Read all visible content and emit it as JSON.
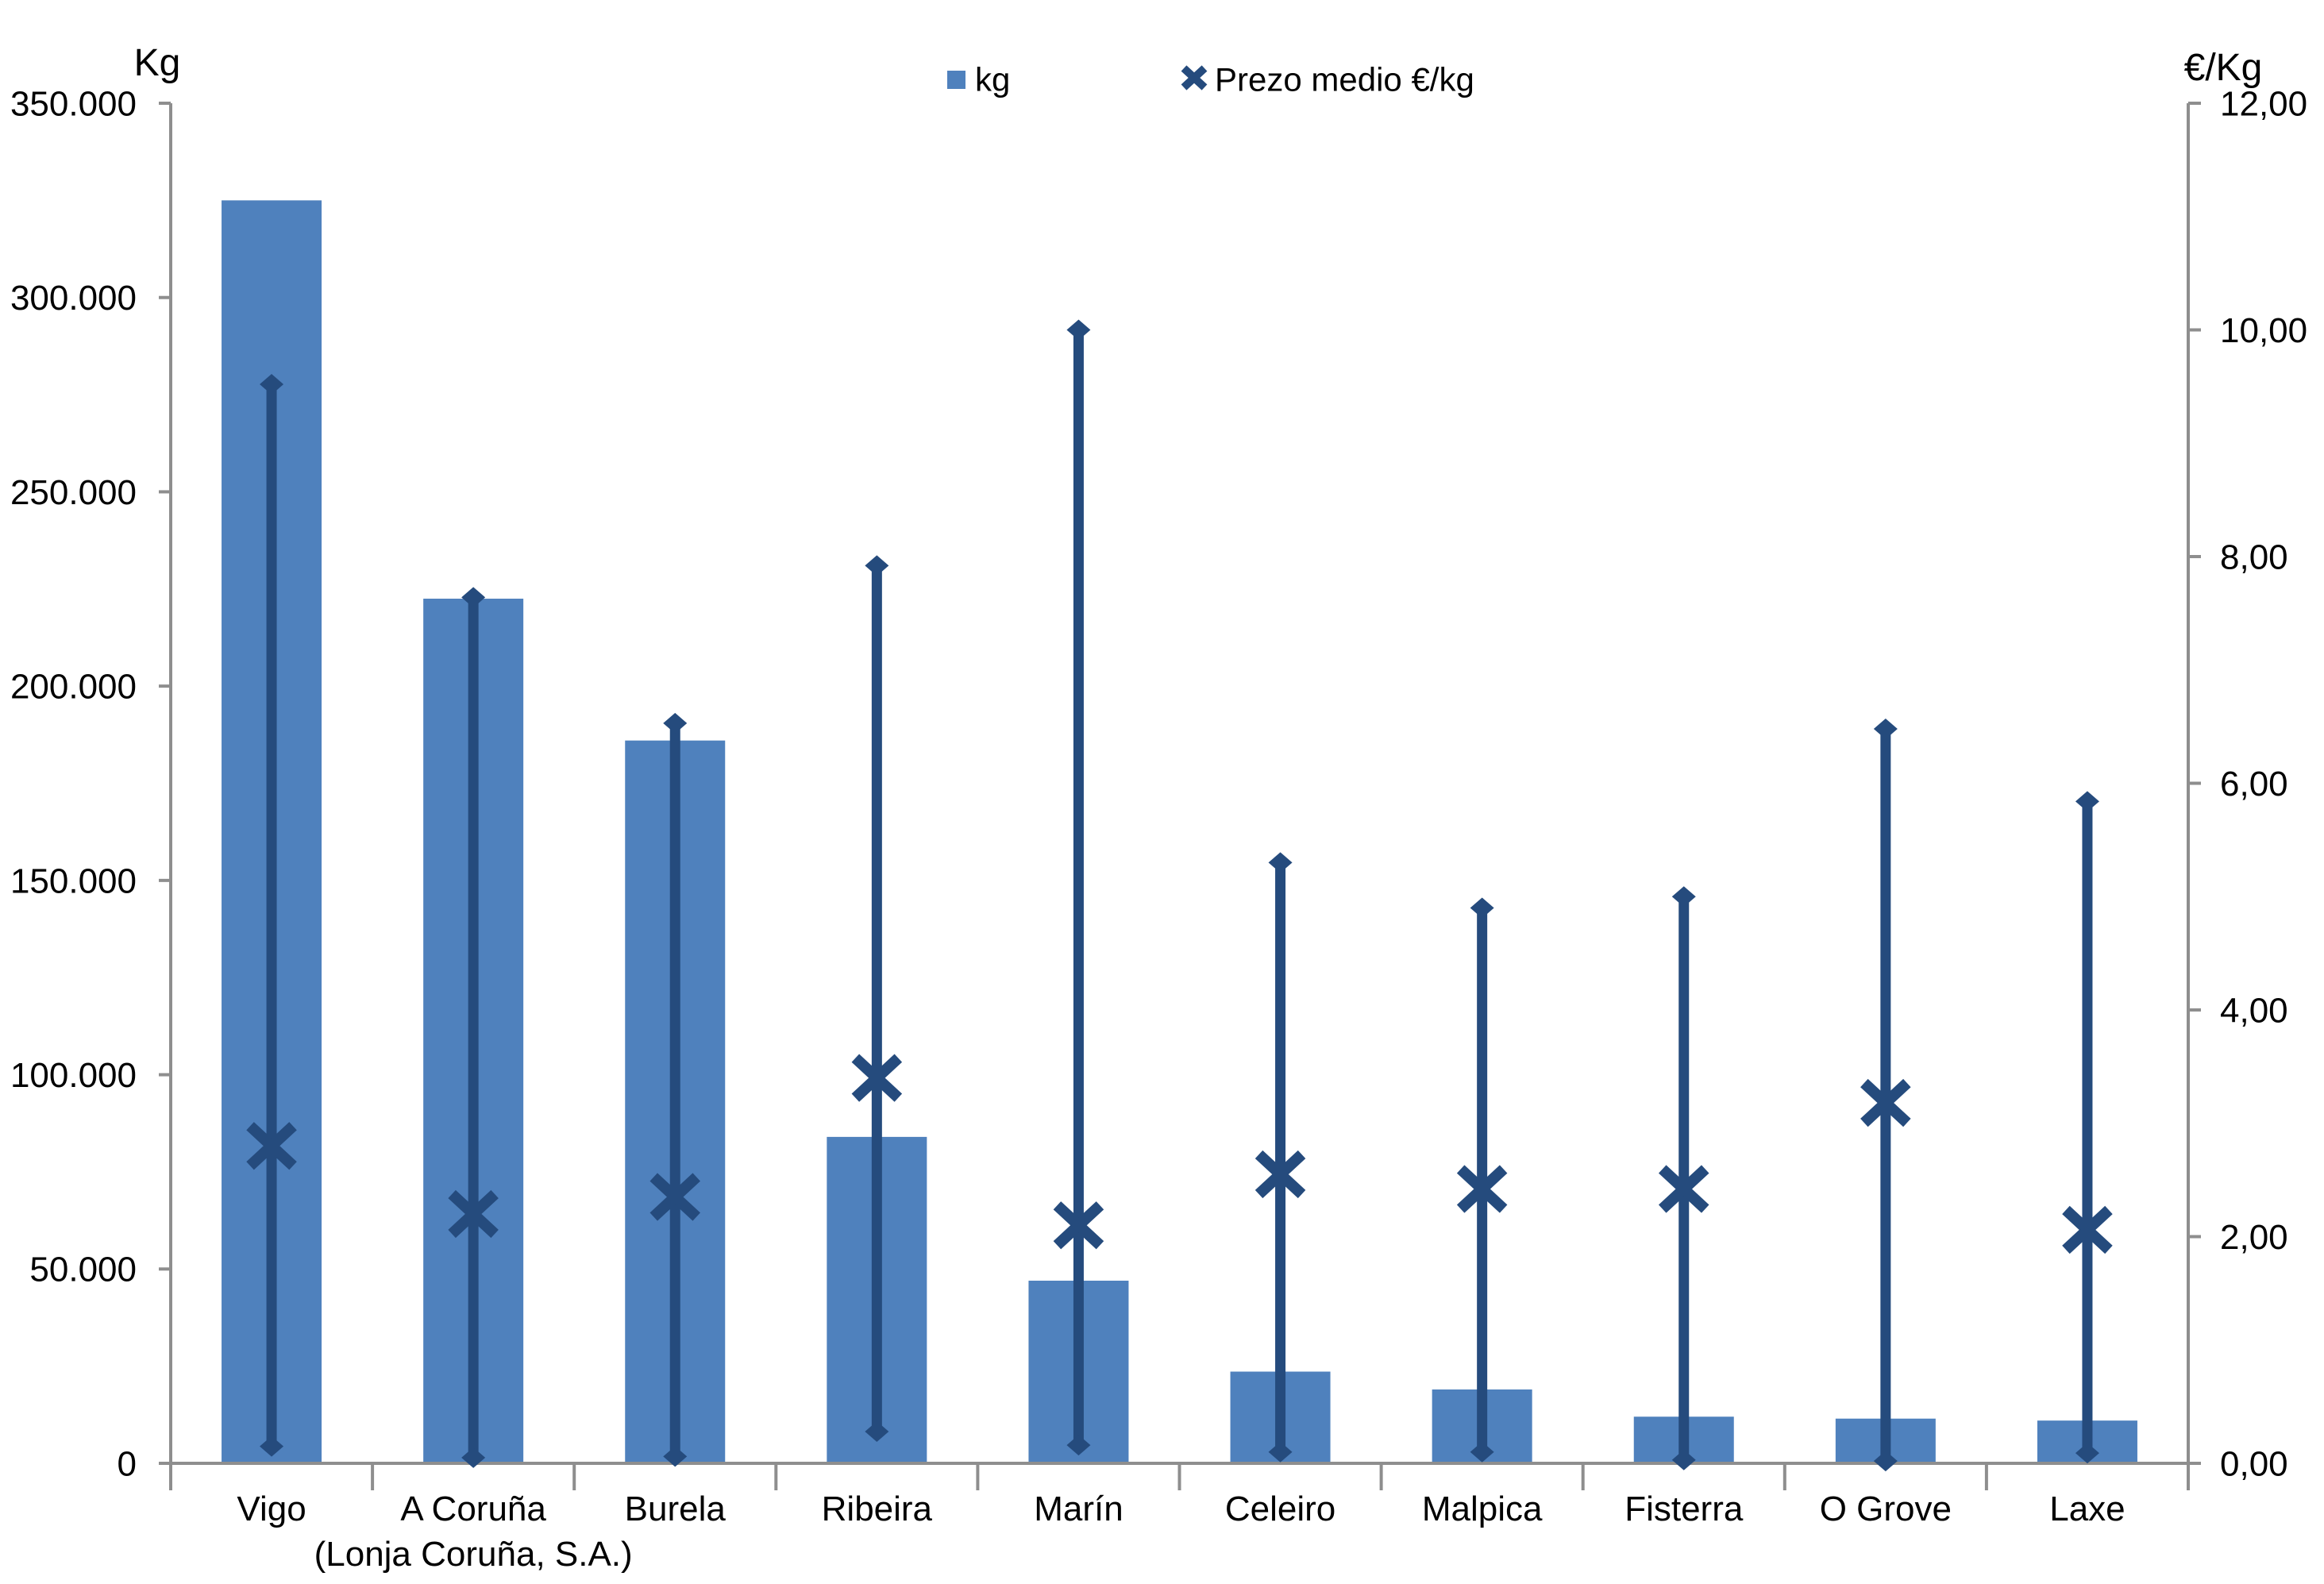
{
  "chart_data": {
    "type": "combo",
    "title": "",
    "legend": [
      {
        "label": "kg",
        "marker": "square-icon"
      },
      {
        "label": "Prezo medio €/kg",
        "marker": "x-icon"
      }
    ],
    "left_axis": {
      "title": "Kg",
      "min": 0,
      "max": 350000,
      "step": 50000,
      "tick_labels": [
        "350.000",
        "300.000",
        "250.000",
        "200.000",
        "150.000",
        "100.000",
        "50.000",
        "0"
      ]
    },
    "right_axis": {
      "title": "€/Kg",
      "min": 0,
      "max": 12,
      "step": 2,
      "tick_labels": [
        "12,00",
        "10,00",
        "8,00",
        "6,00",
        "4,00",
        "2,00",
        "0,00"
      ]
    },
    "categories": [
      {
        "lines": [
          "Vigo"
        ]
      },
      {
        "lines": [
          "A Coruña",
          "(Lonja Coruña, S.A.)"
        ]
      },
      {
        "lines": [
          "Burela"
        ]
      },
      {
        "lines": [
          "Ribeira"
        ]
      },
      {
        "lines": [
          "Marín"
        ]
      },
      {
        "lines": [
          "Celeiro"
        ]
      },
      {
        "lines": [
          "Malpica"
        ]
      },
      {
        "lines": [
          "Fisterra"
        ]
      },
      {
        "lines": [
          "O Grove"
        ]
      },
      {
        "lines": [
          "Laxe"
        ]
      }
    ],
    "series": [
      {
        "role": "bars",
        "legend_label": "kg",
        "axis": "left",
        "type": "bar",
        "values": [
          325000,
          222500,
          186000,
          84000,
          47000,
          23600,
          19000,
          12000,
          11500,
          11000
        ]
      },
      {
        "role": "avg_price_x",
        "legend_label": "Prezo medio €/kg",
        "axis": "right",
        "type": "x_marker",
        "values": [
          2.8,
          2.2,
          2.35,
          3.4,
          2.1,
          2.55,
          2.42,
          2.42,
          3.18,
          2.06
        ]
      },
      {
        "role": "price_range_high",
        "axis": "right",
        "type": "hilo_top_diamond",
        "values": [
          9.52,
          7.64,
          6.53,
          7.92,
          10.0,
          5.3,
          4.9,
          5.0,
          6.48,
          5.84
        ]
      },
      {
        "role": "price_range_low",
        "axis": "right",
        "type": "hilo_bottom_diamond",
        "values": [
          0.15,
          0.05,
          0.06,
          0.28,
          0.16,
          0.1,
          0.1,
          0.03,
          0.02,
          0.09
        ]
      }
    ],
    "colors": {
      "bar": "#4F81BD",
      "line": "#254B7D",
      "axis": "#8E8E8E",
      "text": "#000000",
      "background": "#FFFFFF"
    },
    "layout_hints": {
      "gridlines": false,
      "legend_position": "top-center",
      "left_axis_range": [
        0,
        350000
      ],
      "right_axis_range": [
        0,
        12
      ]
    }
  }
}
